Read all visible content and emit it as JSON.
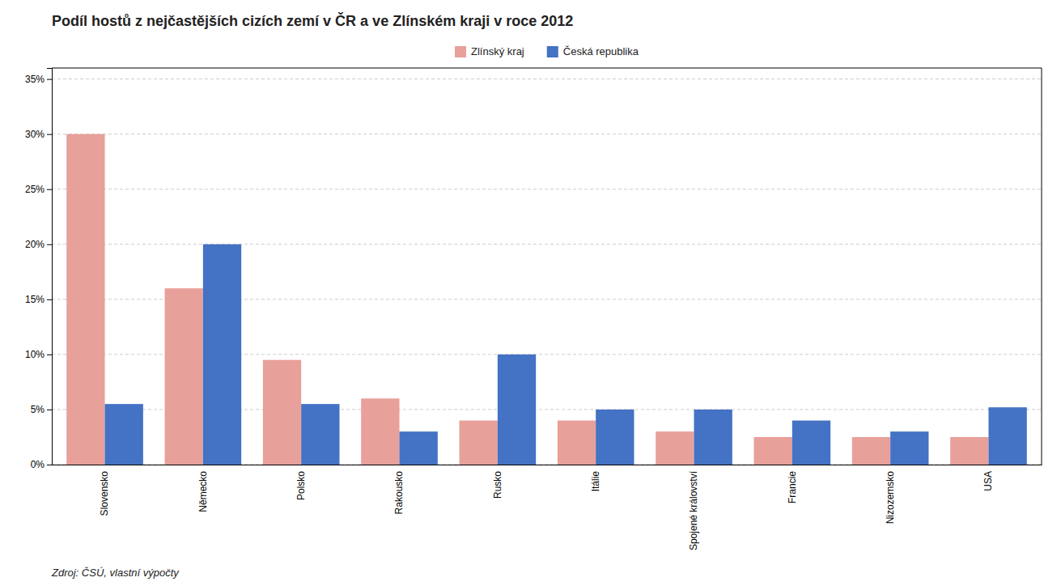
{
  "chart_data": {
    "type": "bar",
    "title": "Podíl hostů z nejčastějších cizích zemí v ČR a ve Zlínském kraji v roce 2012",
    "categories": [
      "Slovensko",
      "Německo",
      "Polsko",
      "Rakousko",
      "Rusko",
      "Itálie",
      "Spojené království",
      "Francie",
      "Nizozemsko",
      "USA"
    ],
    "series": [
      {
        "name": "Zlínský kraj",
        "color": "#E8A09A",
        "values": [
          30.0,
          16.0,
          9.5,
          6.0,
          4.0,
          4.0,
          3.0,
          2.5,
          2.5,
          2.5
        ]
      },
      {
        "name": "Česká republika",
        "color": "#4472C4",
        "values": [
          5.5,
          20.0,
          5.5,
          3.0,
          10.0,
          5.0,
          5.0,
          4.0,
          3.0,
          5.2
        ]
      }
    ],
    "ylim": [
      0,
      36
    ],
    "yticks": [
      {
        "value": 0,
        "label": "0%"
      },
      {
        "value": 5,
        "label": "5%"
      },
      {
        "value": 10,
        "label": "10%"
      },
      {
        "value": 15,
        "label": "15%"
      },
      {
        "value": 20,
        "label": "20%"
      },
      {
        "value": 25,
        "label": "25%"
      },
      {
        "value": 30,
        "label": "30%"
      },
      {
        "value": 35,
        "label": "35%"
      }
    ],
    "grid": true,
    "legend": "top",
    "annotations": [
      "Zdroj: ČSÚ, vlastní výpočty"
    ]
  }
}
